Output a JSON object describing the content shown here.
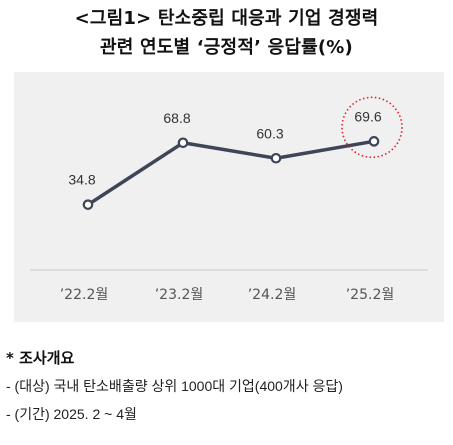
{
  "title_line1": "<그림1> 탄소중립 대응과 기업 경쟁력",
  "title_line2": "관련 연도별 ‘긍정적’ 응답률(%)",
  "chart_data": {
    "type": "line",
    "categories": [
      "’22.2월",
      "’23.2월",
      "’24.2월",
      "’25.2월"
    ],
    "values": [
      34.8,
      68.8,
      60.3,
      69.6
    ],
    "data_labels": [
      "34.8",
      "68.8",
      "60.3",
      "69.6"
    ],
    "ylim": [
      0,
      100
    ],
    "line_color": "#3d4556",
    "marker_fill": "#ffffff",
    "highlight_color": "#e0242a",
    "highlight_index": 3,
    "background": "#f0f0f0",
    "grid": false,
    "legend": "none"
  },
  "notes": {
    "bullet": "*",
    "header": "조사개요",
    "lines": [
      "- (대상) 국내 탄소배출량 상위 1000대 기업(400개사 응답)",
      "- (기간) 2025. 2 ~ 4월"
    ]
  }
}
